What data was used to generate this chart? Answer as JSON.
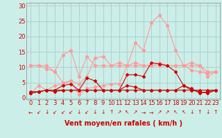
{
  "background_color": "#cceee8",
  "grid_color": "#aacccc",
  "x_labels": [
    "0",
    "1",
    "2",
    "3",
    "4",
    "5",
    "6",
    "7",
    "8",
    "9",
    "10",
    "11",
    "12",
    "13",
    "14",
    "15",
    "16",
    "17",
    "18",
    "19",
    "20",
    "21",
    "22",
    "23"
  ],
  "xlabel": "Vent moyen/en rafales ( km/h )",
  "ylabel_ticks": [
    0,
    5,
    10,
    15,
    20,
    25,
    30
  ],
  "ylim": [
    -0.5,
    31
  ],
  "xlim": [
    -0.5,
    23.5
  ],
  "series_light": [
    [
      1.5,
      4.0,
      2.5,
      4.0,
      4.5,
      5.5,
      1.0,
      3.0,
      3.5,
      4.0,
      4.5,
      4.5,
      10.5,
      18.0,
      15.5,
      24.5,
      27.0,
      23.5,
      15.5,
      10.5,
      11.5,
      10.5,
      7.0,
      8.5
    ],
    [
      10.5,
      10.5,
      10.5,
      8.5,
      14.0,
      15.5,
      7.0,
      13.5,
      10.5,
      10.5,
      10.5,
      11.5,
      10.5,
      10.5,
      10.5,
      10.5,
      10.5,
      10.5,
      10.5,
      10.5,
      10.5,
      10.5,
      8.5,
      8.5
    ],
    [
      10.5,
      10.5,
      9.5,
      8.5,
      5.0,
      5.5,
      4.5,
      7.0,
      13.0,
      13.5,
      10.5,
      10.5,
      10.5,
      11.5,
      10.5,
      10.5,
      11.5,
      10.5,
      10.5,
      10.5,
      9.0,
      8.5,
      8.0,
      8.5
    ]
  ],
  "series_dark": [
    [
      1.5,
      2.0,
      2.5,
      2.5,
      4.0,
      4.5,
      2.5,
      6.5,
      5.5,
      2.5,
      2.5,
      2.5,
      7.5,
      7.5,
      7.0,
      11.5,
      11.0,
      10.5,
      8.5,
      4.0,
      3.0,
      1.5,
      2.0,
      2.5
    ],
    [
      1.5,
      2.0,
      2.5,
      2.0,
      2.5,
      2.5,
      2.5,
      2.5,
      2.5,
      2.5,
      2.5,
      2.5,
      4.0,
      3.5,
      2.5,
      2.5,
      2.5,
      2.5,
      2.5,
      4.0,
      2.5,
      2.0,
      1.5,
      2.5
    ],
    [
      2.0,
      2.0,
      2.5,
      2.5,
      2.5,
      2.5,
      2.5,
      2.5,
      2.5,
      2.5,
      2.5,
      2.5,
      2.5,
      2.5,
      2.5,
      2.5,
      2.5,
      2.5,
      2.5,
      2.5,
      2.5,
      2.5,
      2.5,
      2.5
    ]
  ],
  "light_color": "#ff9999",
  "dark_color": "#cc0000",
  "marker_size": 2.5,
  "linewidth": 0.8,
  "arrows": [
    "←",
    "↙",
    "↓",
    "↙",
    "↙",
    "↙",
    "↓",
    "↙",
    "↓",
    "↓",
    "↑",
    "↗",
    "↖",
    "↗",
    "→",
    "→",
    "↗",
    "↗",
    "↖",
    "↖",
    "↓",
    "↑",
    "↓",
    "↑"
  ],
  "xlabel_fontsize": 7,
  "tick_fontsize": 6,
  "arrow_fontsize": 5.5
}
